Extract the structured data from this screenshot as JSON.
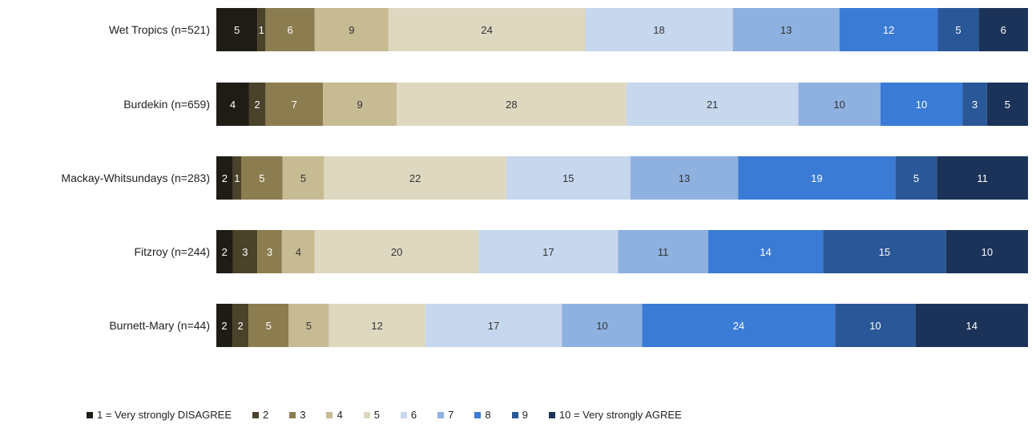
{
  "chart_data": {
    "type": "bar",
    "orientation": "horizontal",
    "stacked": true,
    "percent_stacked": true,
    "categories": [
      "Wet Tropics (n=521)",
      "Burdekin (n=659)",
      "Mackay-Whitsundays (n=283)",
      "Fitzroy (n=244)",
      "Burnett-Mary (n=44)"
    ],
    "series": [
      {
        "name": "1 = Very strongly DISAGREE",
        "color": "#1e1c14",
        "label_color": "#ffffff",
        "values": [
          5,
          4,
          2,
          2,
          2
        ]
      },
      {
        "name": "2",
        "color": "#4a4229",
        "label_color": "#ffffff",
        "values": [
          1,
          2,
          1,
          3,
          2
        ]
      },
      {
        "name": "3",
        "color": "#8b7d4f",
        "label_color": "#ffffff",
        "values": [
          6,
          7,
          5,
          3,
          5
        ]
      },
      {
        "name": "4",
        "color": "#c7bb94",
        "label_color": "#333333",
        "values": [
          9,
          9,
          5,
          4,
          5
        ]
      },
      {
        "name": "5",
        "color": "#dfd8c1",
        "label_color": "#333333",
        "values": [
          24,
          28,
          22,
          20,
          12
        ]
      },
      {
        "name": "6",
        "color": "#c6d7ee",
        "label_color": "#333333",
        "values": [
          18,
          21,
          15,
          17,
          17
        ]
      },
      {
        "name": "7",
        "color": "#8eb1e0",
        "label_color": "#333333",
        "values": [
          13,
          10,
          13,
          11,
          10
        ]
      },
      {
        "name": "8",
        "color": "#3a7bd5",
        "label_color": "#ffffff",
        "values": [
          12,
          10,
          19,
          14,
          24
        ]
      },
      {
        "name": "9",
        "color": "#2a5797",
        "label_color": "#ffffff",
        "values": [
          5,
          3,
          5,
          15,
          10
        ]
      },
      {
        "name": "10 = Very strongly AGREE",
        "color": "#1b3358",
        "label_color": "#ffffff",
        "values": [
          6,
          5,
          11,
          10,
          14
        ]
      }
    ],
    "legend_position": "bottom",
    "grid": false
  }
}
